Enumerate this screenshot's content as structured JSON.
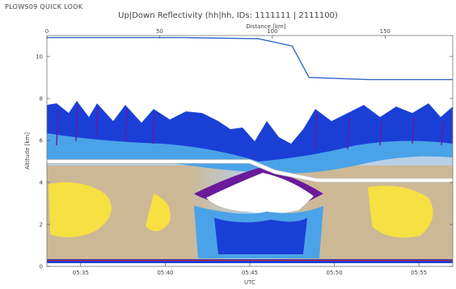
{
  "header": {
    "quicklook_label": "PLOWS09 QUICK LOOK"
  },
  "chart_data": {
    "type": "heatmap",
    "title": "Up|Down Reflectivity (hh|hh, IDs: 1111111 | 2111100)",
    "xlabel": "UTC",
    "x2label": "Distance [km]",
    "ylabel": "Altitude [km]",
    "xlim": [
      "05:33",
      "05:57"
    ],
    "x2lim": [
      0,
      180
    ],
    "ylim": [
      0,
      11
    ],
    "x_ticks": [
      "05:35",
      "05:40",
      "05:45",
      "05:50",
      "05:55"
    ],
    "x_ticks_minutes": [
      35,
      40,
      45,
      50,
      55
    ],
    "x2_ticks": [
      0,
      50,
      100,
      150
    ],
    "y_ticks": [
      0,
      2,
      4,
      6,
      8,
      10
    ],
    "series": [
      {
        "name": "aircraft altitude",
        "x": [
          33,
          41,
          45.5,
          47.5,
          48.5,
          52,
          57
        ],
        "y": [
          10.9,
          10.9,
          10.85,
          10.5,
          9.0,
          8.9,
          8.9
        ],
        "color": "#3366cc"
      },
      {
        "name": "melting level",
        "x": [
          33,
          45,
          46.5,
          49,
          57
        ],
        "y": [
          5.0,
          5.0,
          4.5,
          4.1,
          4.1
        ],
        "color": "#ffffff"
      }
    ],
    "colors": {
      "very_strong": "#ffffff",
      "strong": "#6a1a9a",
      "moderate": "#1a3fd6",
      "light": "#4aa3e8",
      "weak": "#b9cfe6",
      "background": "#cdb896",
      "bright": "#f6e042",
      "surface": "#cc2222"
    }
  }
}
